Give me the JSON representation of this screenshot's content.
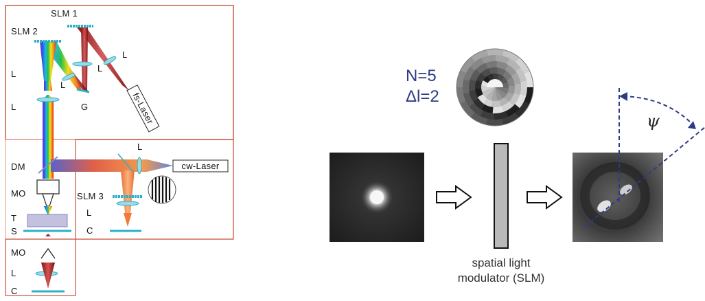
{
  "setup": {
    "labels": {
      "slm1": "SLM 1",
      "slm2": "SLM 2",
      "slm3": "SLM 3",
      "lens": "L",
      "grating": "G",
      "fs_laser": "fs-Laser",
      "cw_laser": "cw-Laser",
      "dm": "DM",
      "mo": "MO",
      "t": "T",
      "s": "S",
      "c": "C"
    }
  },
  "schematic": {
    "n_label": "N=5",
    "dl_label": "Δl=2",
    "psi_label": "ψ",
    "slm_caption_line1": "spatial light",
    "slm_caption_line2": "modulator (SLM)"
  },
  "colors": {
    "frame": "#c8503a",
    "frame_light": "#e9a98f",
    "fs_beam": "#a61c1c",
    "cw_beam": "#f07a3a",
    "cw_beam_blue": "#2f5fc8",
    "optic": "#2ab0c8",
    "schematic_blue": "#2e3b86",
    "slm_gray": "#b9b9b9"
  }
}
